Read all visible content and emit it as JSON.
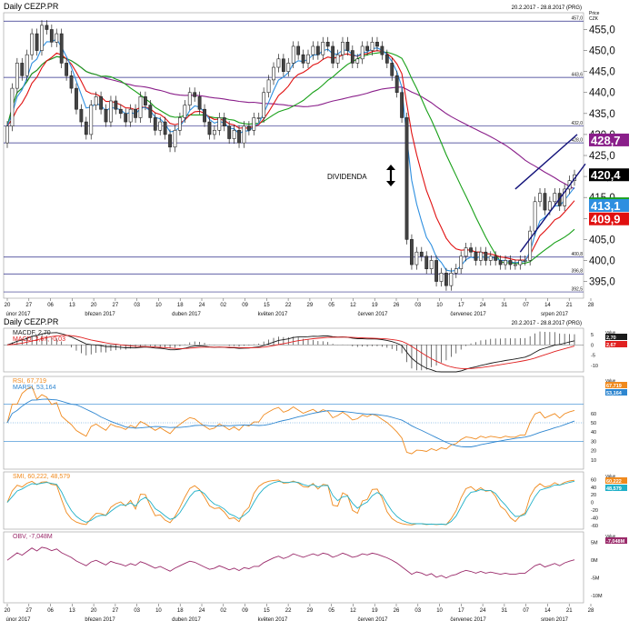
{
  "header": {
    "title": "Daily CEZP.PR",
    "range": "20.2.2017 - 28.8.2017 (PRG)",
    "price_label": "Price",
    "currency": "CZK",
    "value_label": "Value"
  },
  "colors": {
    "candle_up": "#ffffff",
    "candle_down": "#444444",
    "ema_blue": "#2e8fe0",
    "ema_red": "#e01010",
    "sma_green": "#18a018",
    "sma_purple": "#8a1f8a",
    "hline": "#2a2a88",
    "trend": "#12127a",
    "rsi": "#f08a1e",
    "marsi": "#2e86d0",
    "stoch_k": "#f08a1e",
    "stoch_d": "#20b0c8",
    "obv": "#9a2a6a",
    "macd": "#1a1a1a",
    "macd_signal": "#e02020"
  },
  "dates": {
    "ticks": [
      "20",
      "27",
      "06",
      "13",
      "20",
      "27",
      "03",
      "10",
      "18",
      "24",
      "02",
      "09",
      "15",
      "22",
      "29",
      "05",
      "12",
      "19",
      "26",
      "03",
      "10",
      "17",
      "24",
      "31",
      "07",
      "14",
      "21",
      "28"
    ],
    "months": [
      "únor 2017",
      "březen 2017",
      "duben 2017",
      "květen 2017",
      "červen 2017",
      "červenec 2017",
      "srpen 2017"
    ]
  },
  "annotation": {
    "dividend": "DIVIDENDA",
    "dividend_icon": "double-arrow-icon"
  },
  "chart_data": [
    {
      "type": "candlestick",
      "name": "price",
      "ylim": [
        391,
        459
      ],
      "yticks": [
        "455,0",
        "450,0",
        "445,0",
        "440,0",
        "435,0",
        "430,0",
        "425,0",
        "420,0",
        "415,0",
        "410,0",
        "405,0",
        "400,0",
        "395,0"
      ],
      "levels": [
        {
          "value": 457.0,
          "label": "457,0"
        },
        {
          "value": 443.6,
          "label": "443,6"
        },
        {
          "value": 432.0,
          "label": "432,0"
        },
        {
          "value": 428.0,
          "label": "428,0"
        },
        {
          "value": 400.8,
          "label": "400,8"
        },
        {
          "value": 396.8,
          "label": "396,8"
        },
        {
          "value": 392.5,
          "label": "392,5"
        }
      ],
      "close": [
        432,
        441,
        447,
        444,
        449,
        454,
        450,
        456,
        455,
        452,
        454,
        447,
        444,
        441,
        436,
        433,
        430,
        437,
        439,
        436,
        433,
        438,
        436,
        435,
        433,
        436,
        434,
        439,
        437,
        434,
        431,
        433,
        430,
        427,
        431,
        434,
        437,
        440,
        439,
        436,
        433,
        430,
        431,
        434,
        432,
        429,
        431,
        428,
        432,
        431,
        434,
        434,
        440,
        443,
        446,
        448,
        445,
        447,
        451,
        449,
        447,
        449,
        451,
        449,
        452,
        451,
        447,
        449,
        452,
        450,
        447,
        448,
        451,
        450,
        452,
        451,
        449,
        447,
        444,
        440,
        434,
        405,
        399,
        402,
        401,
        398,
        400,
        395,
        397,
        394,
        397,
        398,
        401,
        403,
        402,
        400,
        402,
        400,
        401,
        400,
        399,
        400,
        399,
        399,
        400,
        400,
        407,
        414,
        416,
        412,
        414,
        416,
        413,
        417,
        419,
        420.4
      ],
      "open": [
        428,
        432,
        441,
        447,
        444,
        449,
        454,
        450,
        456,
        455,
        452,
        454,
        447,
        444,
        441,
        436,
        433,
        430,
        437,
        439,
        436,
        433,
        438,
        436,
        435,
        433,
        436,
        434,
        439,
        437,
        434,
        431,
        433,
        430,
        427,
        431,
        434,
        437,
        440,
        439,
        436,
        433,
        430,
        431,
        434,
        432,
        429,
        431,
        428,
        432,
        431,
        434,
        434,
        440,
        443,
        446,
        448,
        445,
        447,
        451,
        449,
        447,
        449,
        451,
        449,
        452,
        451,
        447,
        449,
        452,
        450,
        447,
        448,
        451,
        450,
        452,
        451,
        449,
        447,
        444,
        440,
        434,
        405,
        399,
        402,
        401,
        398,
        400,
        395,
        397,
        394,
        397,
        398,
        401,
        403,
        402,
        400,
        402,
        400,
        401,
        400,
        399,
        400,
        399,
        399,
        400,
        400,
        407,
        414,
        416,
        412,
        414,
        416,
        413,
        417,
        419
      ],
      "indicators_last": [
        {
          "name": "SMA purple",
          "value": "428,7",
          "color": "#8a1f8a"
        },
        {
          "name": "close",
          "value": "420,4",
          "color": "#000000"
        },
        {
          "name": "SMA green",
          "value": "413,5",
          "color": "#18a018"
        },
        {
          "name": "EMA blue",
          "value": "413,1",
          "color": "#2e8fe0"
        },
        {
          "name": "EMA red",
          "value": "409,9",
          "color": "#e01010"
        }
      ]
    },
    {
      "type": "line",
      "name": "MACD",
      "title": "Daily CEZP.PR",
      "range": "20.2.2017 - 28.8.2017 (PRG)",
      "legend": [
        "MACDF, 2,70",
        "MACD, 2,67, -0,03"
      ],
      "series": [
        {
          "name": "MACDF",
          "last": "2,70"
        },
        {
          "name": "MACD",
          "last": "2,67"
        }
      ],
      "yticks": [
        "5",
        "0",
        "-5",
        "-10"
      ],
      "ylim": [
        -13,
        8
      ]
    },
    {
      "type": "line",
      "name": "RSI",
      "legend": [
        "RSI, 67,719",
        "MARSI, 53,164"
      ],
      "series": [
        {
          "name": "RSI",
          "last": "67,719"
        },
        {
          "name": "MARSI",
          "last": "53,164"
        }
      ],
      "yticks": [
        "60",
        "50",
        "40",
        "30",
        "20",
        "10"
      ],
      "ylim": [
        0,
        100
      ]
    },
    {
      "type": "line",
      "name": "SMI",
      "legend": [
        "SMI, 60,222, 48,579"
      ],
      "series": [
        {
          "name": "SMI",
          "last": "60,222"
        },
        {
          "name": "SMI signal",
          "last": "48,579"
        }
      ],
      "yticks": [
        "60",
        "40",
        "20",
        "0",
        "-20",
        "-40",
        "-60"
      ],
      "ylim": [
        -70,
        80
      ]
    },
    {
      "type": "line",
      "name": "OBV",
      "legend": [
        "OBV, -7,048M"
      ],
      "series": [
        {
          "name": "OBV",
          "last": "-7,048M"
        }
      ],
      "yticks": [
        "5M",
        "0M",
        "-5M",
        "-10M"
      ],
      "ylim": [
        -12,
        8
      ]
    }
  ]
}
